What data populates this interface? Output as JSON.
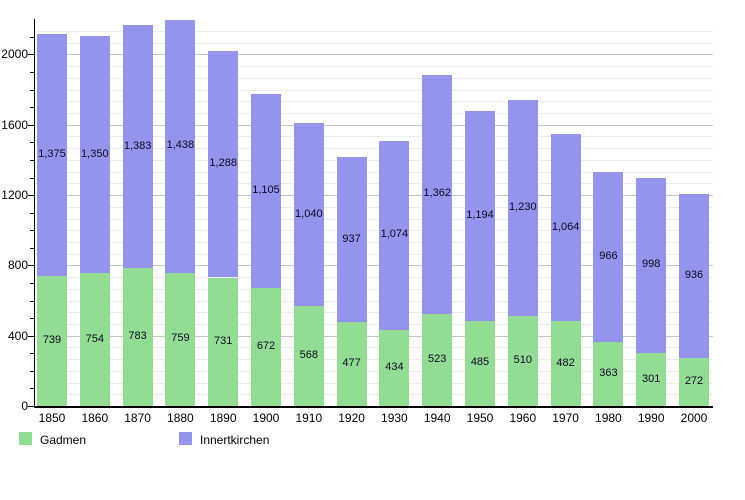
{
  "chart_data": {
    "type": "bar",
    "stacked": true,
    "title": "",
    "xlabel": "",
    "ylabel": "",
    "categories": [
      "1850",
      "1860",
      "1870",
      "1880",
      "1890",
      "1900",
      "1910",
      "1920",
      "1930",
      "1940",
      "1950",
      "1960",
      "1970",
      "1980",
      "1990",
      "2000"
    ],
    "series": [
      {
        "name": "Gadmen",
        "color": "#93DC93",
        "values": [
          739,
          754,
          783,
          759,
          731,
          672,
          568,
          477,
          434,
          523,
          485,
          510,
          482,
          363,
          301,
          272
        ]
      },
      {
        "name": "Innertkirchen",
        "color": "#9494EC",
        "values": [
          1375,
          1350,
          1383,
          1438,
          1288,
          1105,
          1040,
          937,
          1074,
          1362,
          1194,
          1230,
          1064,
          966,
          998,
          936
        ]
      }
    ],
    "ylim": [
      0,
      2200
    ],
    "yticks": [
      0,
      400,
      800,
      1200,
      1600,
      2000
    ],
    "minor_tick_step": 100,
    "minor_gridline_count": 33,
    "grid": true,
    "bar_value_labels": true,
    "legend_position": "bottom",
    "colors": {
      "axis": "#000000",
      "grid_minor": "#ececec",
      "grid_major": "#c6c6c6",
      "bar_label_text": "#0a0a23",
      "background": "#ffffff"
    }
  }
}
